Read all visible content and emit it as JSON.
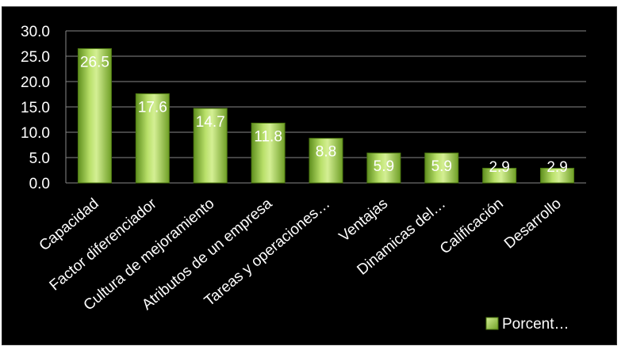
{
  "chart_data": {
    "type": "bar",
    "categories": [
      "Capacidad",
      "Factor diferenciador",
      "Cultura de mejoramiento",
      "Atributos de un empresa",
      "Tareas y operaciones…",
      "Ventajas",
      "Dinamicas del…",
      "Calificación",
      "Desarrollo"
    ],
    "series": [
      {
        "name": "Porcent…",
        "values": [
          26.5,
          17.6,
          14.7,
          11.8,
          8.8,
          5.9,
          5.9,
          2.9,
          2.9
        ]
      }
    ],
    "data_labels": [
      "26.5",
      "17.6",
      "14.7",
      "11.8",
      "8.8",
      "5.9",
      "5.9",
      "2.9",
      "2.9"
    ],
    "y_ticks": [
      "0.0",
      "5.0",
      "10.0",
      "15.0",
      "20.0",
      "25.0",
      "30.0"
    ],
    "ylim": [
      0,
      30
    ],
    "grid": true,
    "legend_position": "bottom-right",
    "colors": {
      "bar": "#8fbf3a",
      "bar_highlight": "#d4ef94",
      "bar_edge": "#4e7a12",
      "grid": "#888888",
      "background": "#000000"
    },
    "legend_icon": "square-marker"
  }
}
